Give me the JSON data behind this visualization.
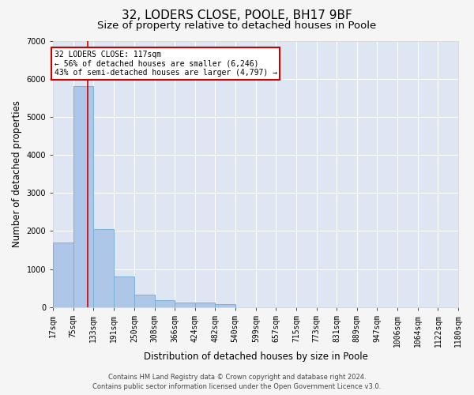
{
  "title": "32, LODERS CLOSE, POOLE, BH17 9BF",
  "subtitle": "Size of property relative to detached houses in Poole",
  "xlabel": "Distribution of detached houses by size in Poole",
  "ylabel": "Number of detached properties",
  "footer_line1": "Contains HM Land Registry data © Crown copyright and database right 2024.",
  "footer_line2": "Contains public sector information licensed under the Open Government Licence v3.0.",
  "bar_color": "#aec6e8",
  "bar_edge_color": "#7aafd4",
  "background_color": "#dde6f2",
  "grid_color": "#ffffff",
  "annotation_text": "32 LODERS CLOSE: 117sqm\n← 56% of detached houses are smaller (6,246)\n43% of semi-detached houses are larger (4,797) →",
  "annotation_box_color": "#ffffff",
  "annotation_box_edge_color": "#cc0000",
  "red_line_color": "#cc0000",
  "subject_size": 117,
  "bin_edges": [
    17,
    75,
    133,
    191,
    250,
    308,
    366,
    424,
    482,
    540,
    599,
    657,
    715,
    773,
    831,
    889,
    947,
    1006,
    1064,
    1122,
    1180
  ],
  "bin_counts": [
    1700,
    5800,
    2050,
    800,
    330,
    180,
    130,
    110,
    70,
    0,
    0,
    0,
    0,
    0,
    0,
    0,
    0,
    0,
    0,
    0
  ],
  "ylim": [
    0,
    7000
  ],
  "yticks": [
    0,
    1000,
    2000,
    3000,
    4000,
    5000,
    6000,
    7000
  ],
  "title_fontsize": 11,
  "subtitle_fontsize": 9.5,
  "axis_label_fontsize": 8.5,
  "tick_fontsize": 7,
  "footer_fontsize": 6
}
